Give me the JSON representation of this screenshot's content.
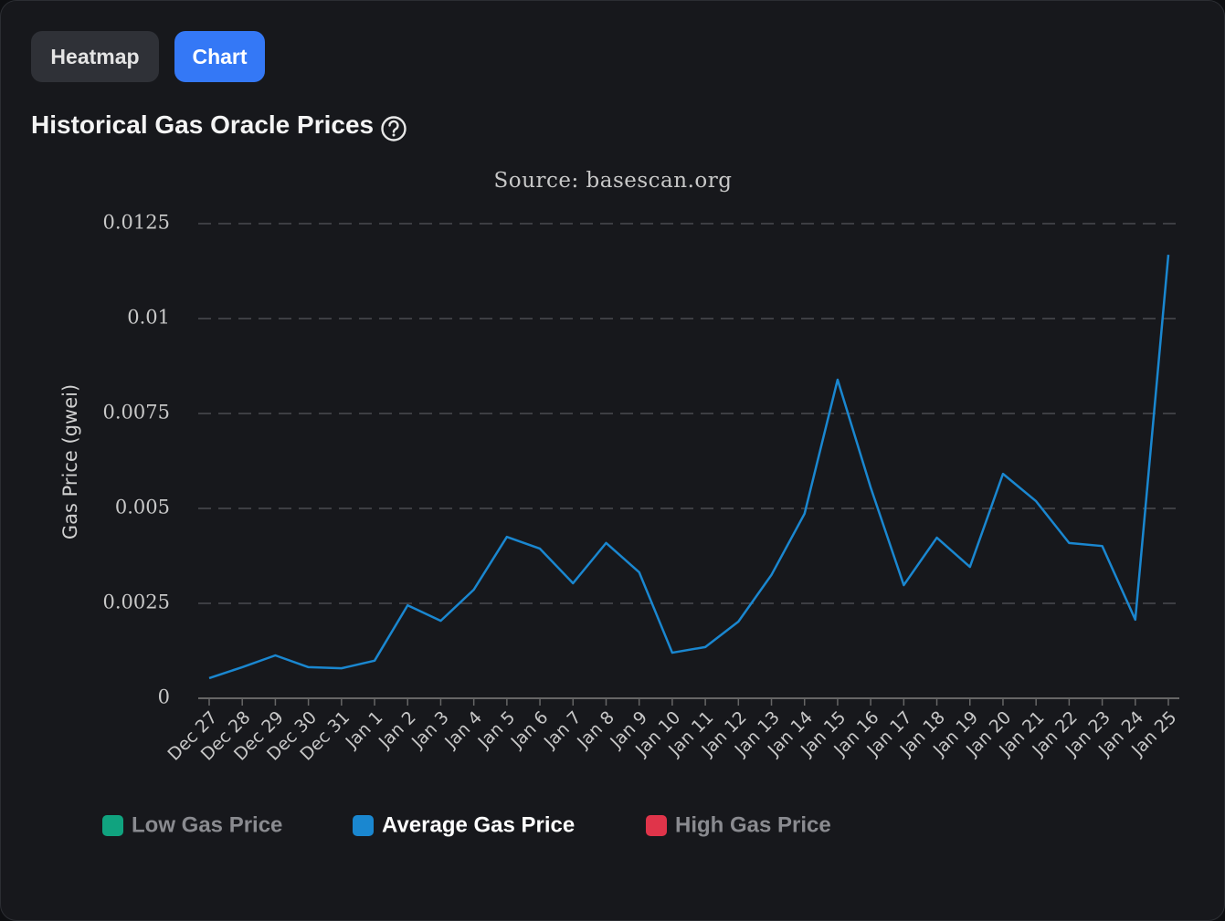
{
  "tabs": [
    "Heatmap",
    "Chart"
  ],
  "header": {
    "title": "Historical Gas Oracle Prices"
  },
  "chart_data": {
    "type": "line",
    "subtitle": "Source: basescan.org",
    "y_label": "Gas Price (gwei)",
    "categories": [
      "Dec 27",
      "Dec 28",
      "Dec 29",
      "Dec 30",
      "Dec 31",
      "Jan 1",
      "Jan 2",
      "Jan 3",
      "Jan 4",
      "Jan 5",
      "Jan 6",
      "Jan 7",
      "Jan 8",
      "Jan 9",
      "Jan 10",
      "Jan 11",
      "Jan 12",
      "Jan 13",
      "Jan 14",
      "Jan 15",
      "Jan 16",
      "Jan 17",
      "Jan 18",
      "Jan 19",
      "Jan 20",
      "Jan 21",
      "Jan 22",
      "Jan 23",
      "Jan 24",
      "Jan 25"
    ],
    "series": [
      {
        "name": "Low Gas Price",
        "color": "#10a37f",
        "visible": false
      },
      {
        "name": "Average Gas Price",
        "color": "#1a87d0",
        "visible": true,
        "values": [
          0.00053,
          0.00082,
          0.00113,
          0.00082,
          0.00079,
          0.00099,
          0.00245,
          0.00204,
          0.00286,
          0.00425,
          0.00394,
          0.00303,
          0.00409,
          0.00332,
          0.0012,
          0.00135,
          0.00202,
          0.00325,
          0.00486,
          0.00839,
          0.00555,
          0.00298,
          0.00423,
          0.00346,
          0.00591,
          0.00519,
          0.00409,
          0.00401,
          0.00207,
          0.01168
        ]
      },
      {
        "name": "High Gas Price",
        "color": "#e0344a",
        "visible": false
      }
    ],
    "ylim": [
      0,
      0.0125
    ],
    "yticks": [
      0,
      0.0025,
      0.005,
      0.0075,
      0.01,
      0.0125
    ],
    "grid": true
  }
}
